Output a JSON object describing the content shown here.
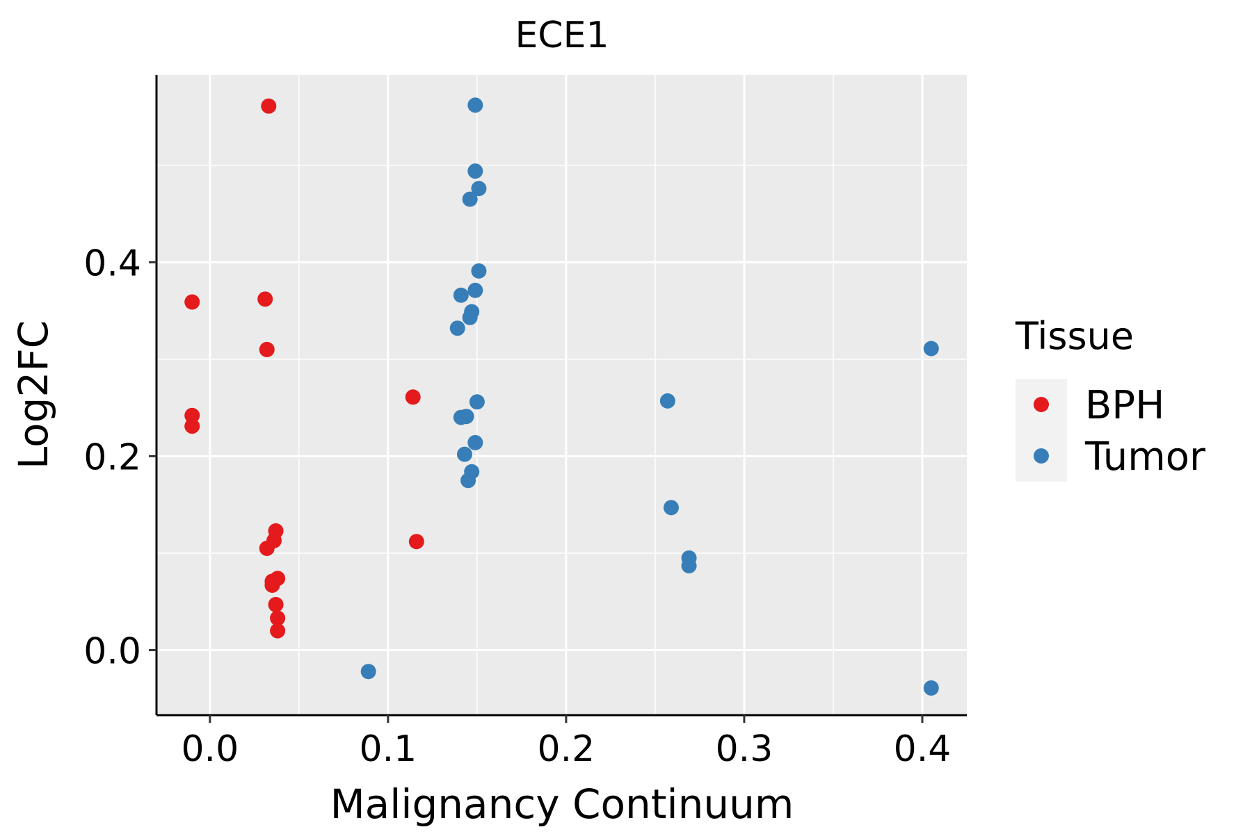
{
  "chart_data": {
    "type": "scatter",
    "title": "ECE1",
    "xlabel": "Malignancy Continuum",
    "ylabel": "Log2FC",
    "xlim": [
      -0.03,
      0.425
    ],
    "ylim": [
      -0.067,
      0.593
    ],
    "x_ticks": [
      0.0,
      0.1,
      0.2,
      0.3,
      0.4
    ],
    "x_tick_labels": [
      "0.0",
      "0.1",
      "0.2",
      "0.3",
      "0.4"
    ],
    "y_ticks": [
      0.0,
      0.2,
      0.4
    ],
    "y_tick_labels": [
      "0.0",
      "0.2",
      "0.4"
    ],
    "grid": true,
    "legend": {
      "title": "Tissue",
      "position": "right"
    },
    "series": [
      {
        "name": "BPH",
        "color": "#E41A1C",
        "points": [
          {
            "x": 0.033,
            "y": 0.561
          },
          {
            "x": -0.01,
            "y": 0.359
          },
          {
            "x": 0.031,
            "y": 0.362
          },
          {
            "x": 0.032,
            "y": 0.31
          },
          {
            "x": 0.114,
            "y": 0.261
          },
          {
            "x": -0.01,
            "y": 0.242
          },
          {
            "x": -0.01,
            "y": 0.231
          },
          {
            "x": 0.037,
            "y": 0.123
          },
          {
            "x": 0.036,
            "y": 0.113
          },
          {
            "x": 0.116,
            "y": 0.112
          },
          {
            "x": 0.032,
            "y": 0.105
          },
          {
            "x": 0.038,
            "y": 0.074
          },
          {
            "x": 0.035,
            "y": 0.071
          },
          {
            "x": 0.035,
            "y": 0.067
          },
          {
            "x": 0.037,
            "y": 0.047
          },
          {
            "x": 0.038,
            "y": 0.033
          },
          {
            "x": 0.038,
            "y": 0.02
          }
        ]
      },
      {
        "name": "Tumor",
        "color": "#377EB8",
        "points": [
          {
            "x": 0.149,
            "y": 0.562
          },
          {
            "x": 0.149,
            "y": 0.494
          },
          {
            "x": 0.151,
            "y": 0.476
          },
          {
            "x": 0.146,
            "y": 0.465
          },
          {
            "x": 0.151,
            "y": 0.391
          },
          {
            "x": 0.149,
            "y": 0.371
          },
          {
            "x": 0.141,
            "y": 0.366
          },
          {
            "x": 0.147,
            "y": 0.349
          },
          {
            "x": 0.146,
            "y": 0.343
          },
          {
            "x": 0.139,
            "y": 0.332
          },
          {
            "x": 0.405,
            "y": 0.311
          },
          {
            "x": 0.257,
            "y": 0.257
          },
          {
            "x": 0.15,
            "y": 0.256
          },
          {
            "x": 0.144,
            "y": 0.241
          },
          {
            "x": 0.141,
            "y": 0.24
          },
          {
            "x": 0.149,
            "y": 0.214
          },
          {
            "x": 0.143,
            "y": 0.202
          },
          {
            "x": 0.147,
            "y": 0.184
          },
          {
            "x": 0.145,
            "y": 0.175
          },
          {
            "x": 0.259,
            "y": 0.147
          },
          {
            "x": 0.269,
            "y": 0.095
          },
          {
            "x": 0.269,
            "y": 0.087
          },
          {
            "x": 0.089,
            "y": -0.022
          },
          {
            "x": 0.405,
            "y": -0.039
          }
        ]
      }
    ]
  }
}
